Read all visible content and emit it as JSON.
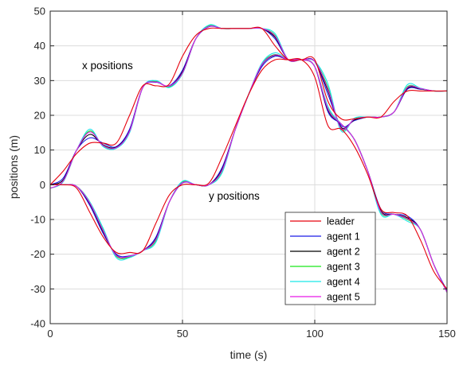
{
  "chart_data": {
    "type": "line",
    "title": "",
    "xlabel": "time (s)",
    "ylabel": "positions (m)",
    "xlim": [
      0,
      150
    ],
    "ylim": [
      -40,
      50
    ],
    "xticks": [
      0,
      50,
      100,
      150
    ],
    "yticks": [
      -40,
      -30,
      -20,
      -10,
      0,
      10,
      20,
      30,
      40,
      50
    ],
    "grid": true,
    "legend_position": "lower-right",
    "annotations": [
      {
        "text": "x positions",
        "x": 12,
        "y": 33
      },
      {
        "text": "y positions",
        "x": 60,
        "y": -1.5
      }
    ],
    "legend": [
      "leader",
      "agent 1",
      "agent 2",
      "agent 3",
      "agent 4",
      "agent 5"
    ],
    "colors": [
      "#e6000c",
      "#1a1ae6",
      "#000000",
      "#19e619",
      "#19e6e6",
      "#e619e6"
    ],
    "leader_x": {
      "x": [
        0,
        5,
        10,
        15,
        20,
        25,
        30,
        35,
        40,
        45,
        50,
        55,
        60,
        65,
        70,
        75,
        80,
        85,
        90,
        95,
        100,
        105,
        110,
        115,
        120,
        125,
        130,
        135,
        140,
        145,
        150
      ],
      "y": [
        0,
        4,
        9,
        12,
        12,
        12,
        20,
        28.5,
        28.5,
        29,
        37,
        43,
        45,
        45,
        45,
        45,
        45,
        40,
        36,
        36,
        36,
        24,
        19,
        19,
        19.5,
        19.5,
        24,
        27,
        27,
        27,
        27
      ]
    },
    "leader_y": {
      "x": [
        0,
        5,
        10,
        15,
        20,
        25,
        30,
        35,
        40,
        45,
        50,
        55,
        60,
        65,
        70,
        75,
        80,
        85,
        90,
        95,
        100,
        105,
        110,
        115,
        120,
        125,
        130,
        135,
        140,
        145,
        150
      ],
      "y": [
        0,
        0,
        -1,
        -8,
        -15,
        -19.5,
        -19.5,
        -19,
        -11,
        -3,
        0,
        0,
        0.5,
        8,
        17,
        26,
        33,
        36,
        36,
        36,
        31,
        17,
        16,
        11,
        3,
        -7,
        -8,
        -9,
        -16,
        -25,
        -30
      ]
    },
    "agents_x": [
      {
        "name": "agent 1",
        "y": [
          0,
          2,
          10,
          13.5,
          12,
          11,
          16,
          28,
          29.5,
          28.5,
          33,
          42,
          45.5,
          45,
          45,
          45,
          45,
          42,
          36,
          36,
          35.5,
          26,
          17,
          18.5,
          19.5,
          19.5,
          21,
          27.5,
          27.5,
          27,
          27
        ]
      },
      {
        "name": "agent 2",
        "y": [
          0,
          1.5,
          10,
          14.5,
          11.5,
          10.8,
          15.5,
          28,
          29.7,
          28.3,
          32.5,
          42,
          45.7,
          45,
          45,
          45,
          45,
          42.5,
          36,
          36,
          35.5,
          27,
          16.5,
          18.7,
          19.5,
          19.5,
          21,
          27.8,
          27.6,
          27,
          27
        ]
      },
      {
        "name": "agent 3",
        "y": [
          -1,
          1,
          10,
          15.5,
          11.2,
          10.6,
          15.2,
          28,
          29.8,
          28.2,
          32,
          42,
          45.8,
          45,
          45,
          45,
          45,
          43,
          36,
          36,
          35.5,
          28,
          16,
          19,
          19.5,
          19.5,
          21,
          28.2,
          27.7,
          27,
          27
        ]
      },
      {
        "name": "agent 4",
        "y": [
          -1,
          1,
          10,
          16,
          11,
          10.5,
          15,
          28,
          30,
          28,
          32,
          42,
          46,
          45,
          45,
          45,
          45,
          43.5,
          36,
          36,
          35.5,
          29,
          15.5,
          19.2,
          19.5,
          19.5,
          21,
          28.8,
          27.8,
          27,
          27
        ]
      },
      {
        "name": "agent 5",
        "y": [
          -1,
          1.2,
          10,
          15.2,
          11.3,
          10.7,
          15.4,
          28,
          29.6,
          28.4,
          32.2,
          42,
          45.6,
          45,
          45,
          45,
          45,
          42.8,
          36,
          36,
          35.5,
          27.5,
          16.2,
          18.9,
          19.5,
          19.5,
          21,
          28,
          27.7,
          27,
          27
        ]
      }
    ],
    "agents_y": [
      {
        "name": "agent 1",
        "y": [
          0,
          0,
          -0.5,
          -6,
          -14,
          -20,
          -20.5,
          -19,
          -15,
          -5,
          0.5,
          0,
          0,
          5,
          16,
          26,
          34,
          37,
          36,
          36,
          34,
          21,
          17.5,
          13,
          4,
          -7,
          -8.5,
          -9,
          -13,
          -23,
          -30.5
        ]
      },
      {
        "name": "agent 2",
        "y": [
          0,
          0,
          -0.5,
          -5.5,
          -13.5,
          -20.3,
          -20.7,
          -19,
          -15.5,
          -5,
          0.7,
          0,
          0,
          4.5,
          16,
          26,
          34.5,
          37.3,
          36,
          36,
          34,
          21.5,
          17.5,
          13,
          4,
          -7.5,
          -8.5,
          -9.5,
          -13,
          -23,
          -31
        ]
      },
      {
        "name": "agent 3",
        "y": [
          0,
          0,
          -0.5,
          -5,
          -13,
          -20.6,
          -20.8,
          -19,
          -16,
          -5,
          0.8,
          0,
          0,
          4,
          16,
          26,
          34.8,
          37.5,
          36,
          36,
          34,
          22,
          17.5,
          13,
          4,
          -8,
          -8.5,
          -10,
          -13,
          -23,
          -31
        ]
      },
      {
        "name": "agent 4",
        "y": [
          0,
          0,
          -0.5,
          -5,
          -12.5,
          -21,
          -21,
          -19,
          -16.5,
          -5,
          1,
          0,
          0,
          3.5,
          16,
          26,
          35,
          38,
          36,
          36,
          34,
          22.5,
          17.5,
          13,
          4,
          -8.5,
          -8.5,
          -10.5,
          -13,
          -23,
          -31
        ]
      },
      {
        "name": "agent 5",
        "y": [
          0,
          0,
          -0.5,
          -5.3,
          -13.2,
          -20.4,
          -20.6,
          -19,
          -15.7,
          -5,
          0.6,
          0,
          0,
          4.2,
          16,
          26,
          34.6,
          37.4,
          36,
          36,
          34,
          21.8,
          17.5,
          13,
          4,
          -7.8,
          -8.5,
          -9.8,
          -13,
          -23,
          -31
        ]
      }
    ]
  }
}
